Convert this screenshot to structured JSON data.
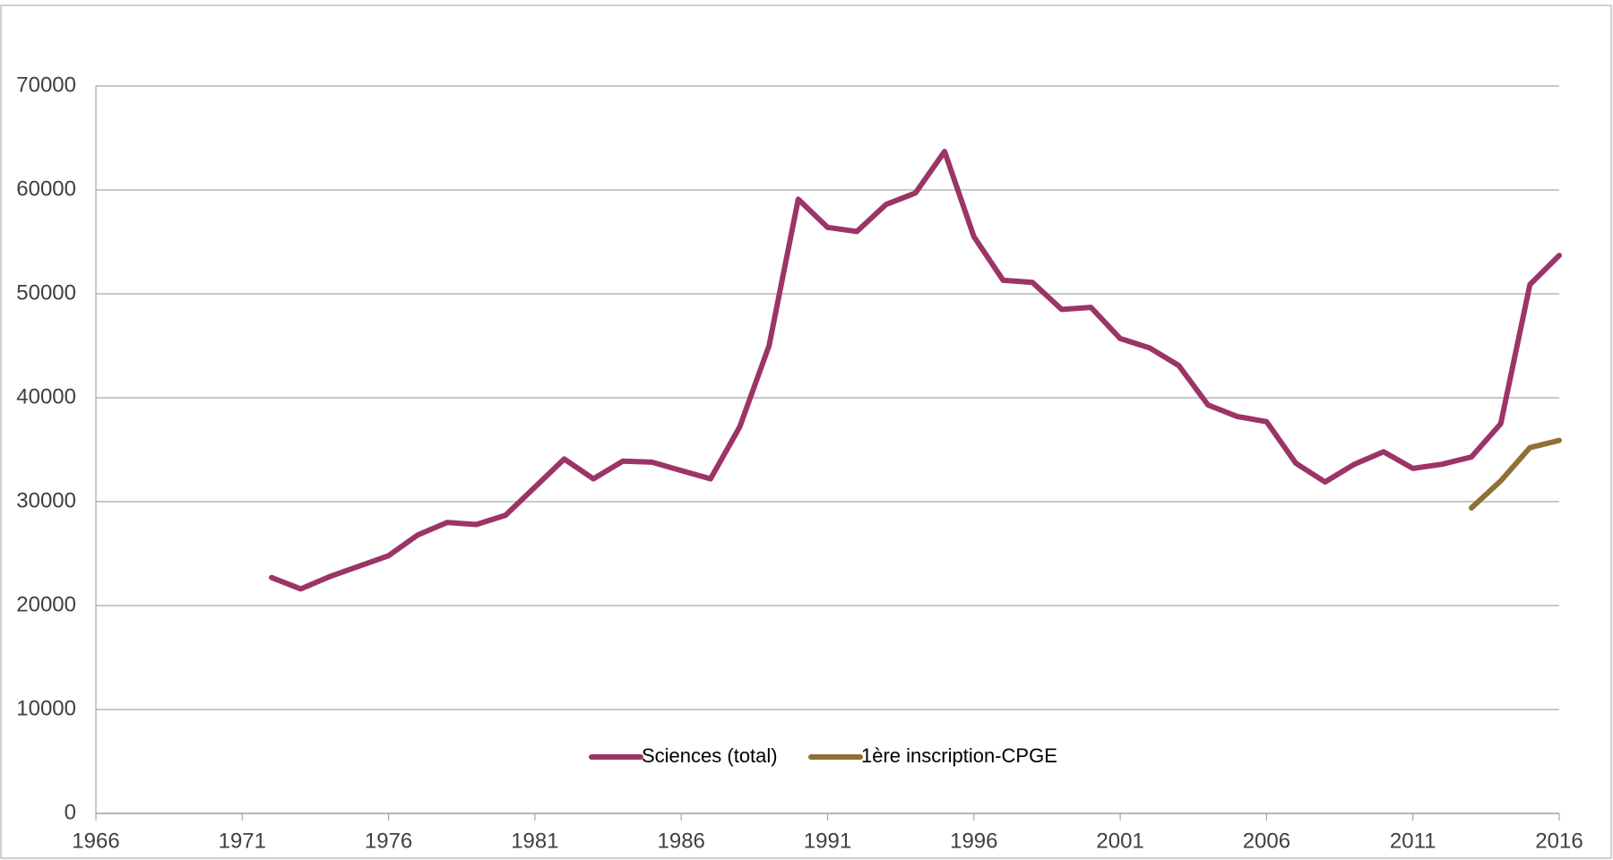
{
  "chart_data": {
    "type": "line",
    "x": [
      1972,
      1973,
      1974,
      1975,
      1976,
      1977,
      1978,
      1979,
      1980,
      1981,
      1982,
      1983,
      1984,
      1985,
      1986,
      1987,
      1988,
      1989,
      1990,
      1991,
      1992,
      1993,
      1994,
      1995,
      1996,
      1997,
      1998,
      1999,
      2000,
      2001,
      2002,
      2003,
      2004,
      2005,
      2006,
      2007,
      2008,
      2009,
      2010,
      2011,
      2012,
      2013,
      2014,
      2015,
      2016
    ],
    "series": [
      {
        "name": "Sciences (total)",
        "color": "#9b3467",
        "values": [
          22700,
          21600,
          22800,
          23800,
          24800,
          26800,
          28000,
          27800,
          28700,
          31400,
          34100,
          32200,
          33900,
          33800,
          33000,
          32200,
          37200,
          45000,
          59100,
          56400,
          56000,
          58600,
          59700,
          63700,
          55500,
          51300,
          51100,
          48500,
          48700,
          45700,
          44800,
          43100,
          39300,
          38200,
          37700,
          33700,
          31900,
          33600,
          34800,
          33200,
          33600,
          34300,
          37500,
          50900,
          53700
        ]
      },
      {
        "name": "1ère inscription-CPGE",
        "color": "#8f7135",
        "values": [
          null,
          null,
          null,
          null,
          null,
          null,
          null,
          null,
          null,
          null,
          null,
          null,
          null,
          null,
          null,
          null,
          null,
          null,
          null,
          null,
          null,
          null,
          null,
          null,
          null,
          null,
          null,
          null,
          null,
          null,
          null,
          null,
          null,
          null,
          null,
          null,
          null,
          null,
          null,
          null,
          null,
          29400,
          32000,
          35200,
          35900
        ]
      }
    ],
    "xlim": [
      1966,
      2016
    ],
    "xticks": [
      1966,
      1971,
      1976,
      1981,
      1986,
      1991,
      1996,
      2001,
      2006,
      2011,
      2016
    ],
    "ylim": [
      0,
      70000
    ],
    "yticks": [
      0,
      10000,
      20000,
      30000,
      40000,
      50000,
      60000,
      70000
    ],
    "grid": true,
    "legend": "bottom"
  }
}
